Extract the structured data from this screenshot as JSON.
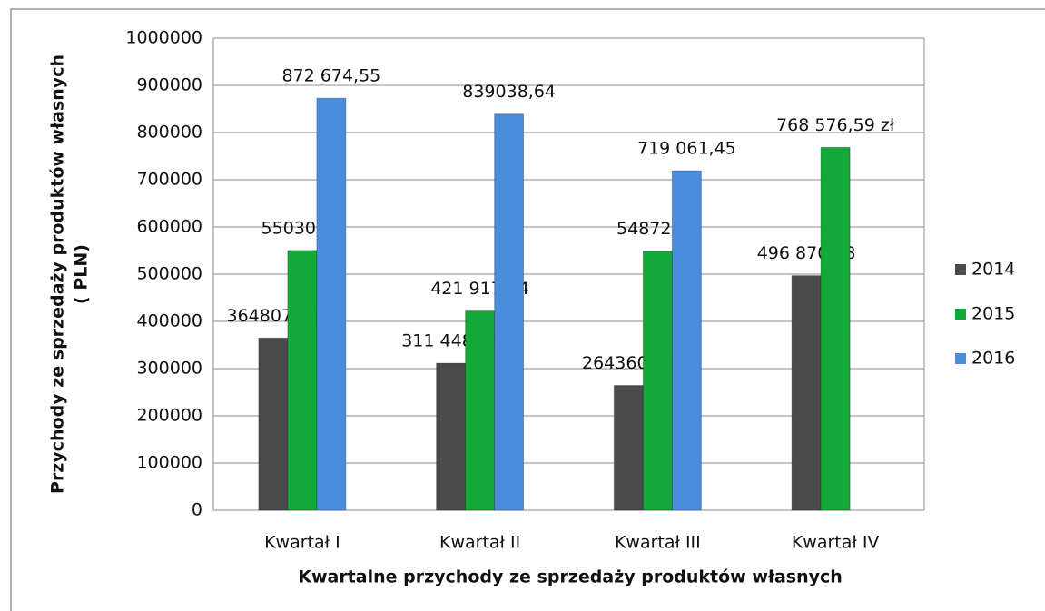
{
  "chart_data": {
    "type": "bar",
    "ylabel": [
      "Przychody ze sprzedaży produktów własnych",
      "( PLN)"
    ],
    "xlabel": "Kwartalne przychody ze sprzedaży produktów własnych",
    "categories": [
      "Kwartał I",
      "Kwartał II",
      "Kwartał III",
      "Kwartał IV"
    ],
    "series": [
      {
        "name": "2014",
        "color": "#4a4a4a",
        "values": [
          364807.86,
          311448.26,
          264360.46,
          496870.38
        ],
        "value_labels": [
          "364807,86",
          "311 448,26",
          "264360,46",
          "496 870,38"
        ]
      },
      {
        "name": "2015",
        "color": "#12a83a",
        "values": [
          550301.6,
          421917.64,
          548724.3,
          768576.59
        ],
        "value_labels": [
          "550301,6",
          "421 917,64",
          "548724,3",
          "768 576,59 zł"
        ]
      },
      {
        "name": "2016",
        "color": "#4a8ddc",
        "values": [
          872674.55,
          839038.64,
          719061.45,
          null
        ],
        "value_labels": [
          "872 674,55",
          "839038,64",
          "719 061,45",
          null
        ]
      }
    ],
    "ylim": [
      0,
      1000000
    ],
    "yticks": [
      0,
      100000,
      200000,
      300000,
      400000,
      500000,
      600000,
      700000,
      800000,
      900000,
      1000000
    ],
    "grid": true,
    "legend": "right"
  }
}
